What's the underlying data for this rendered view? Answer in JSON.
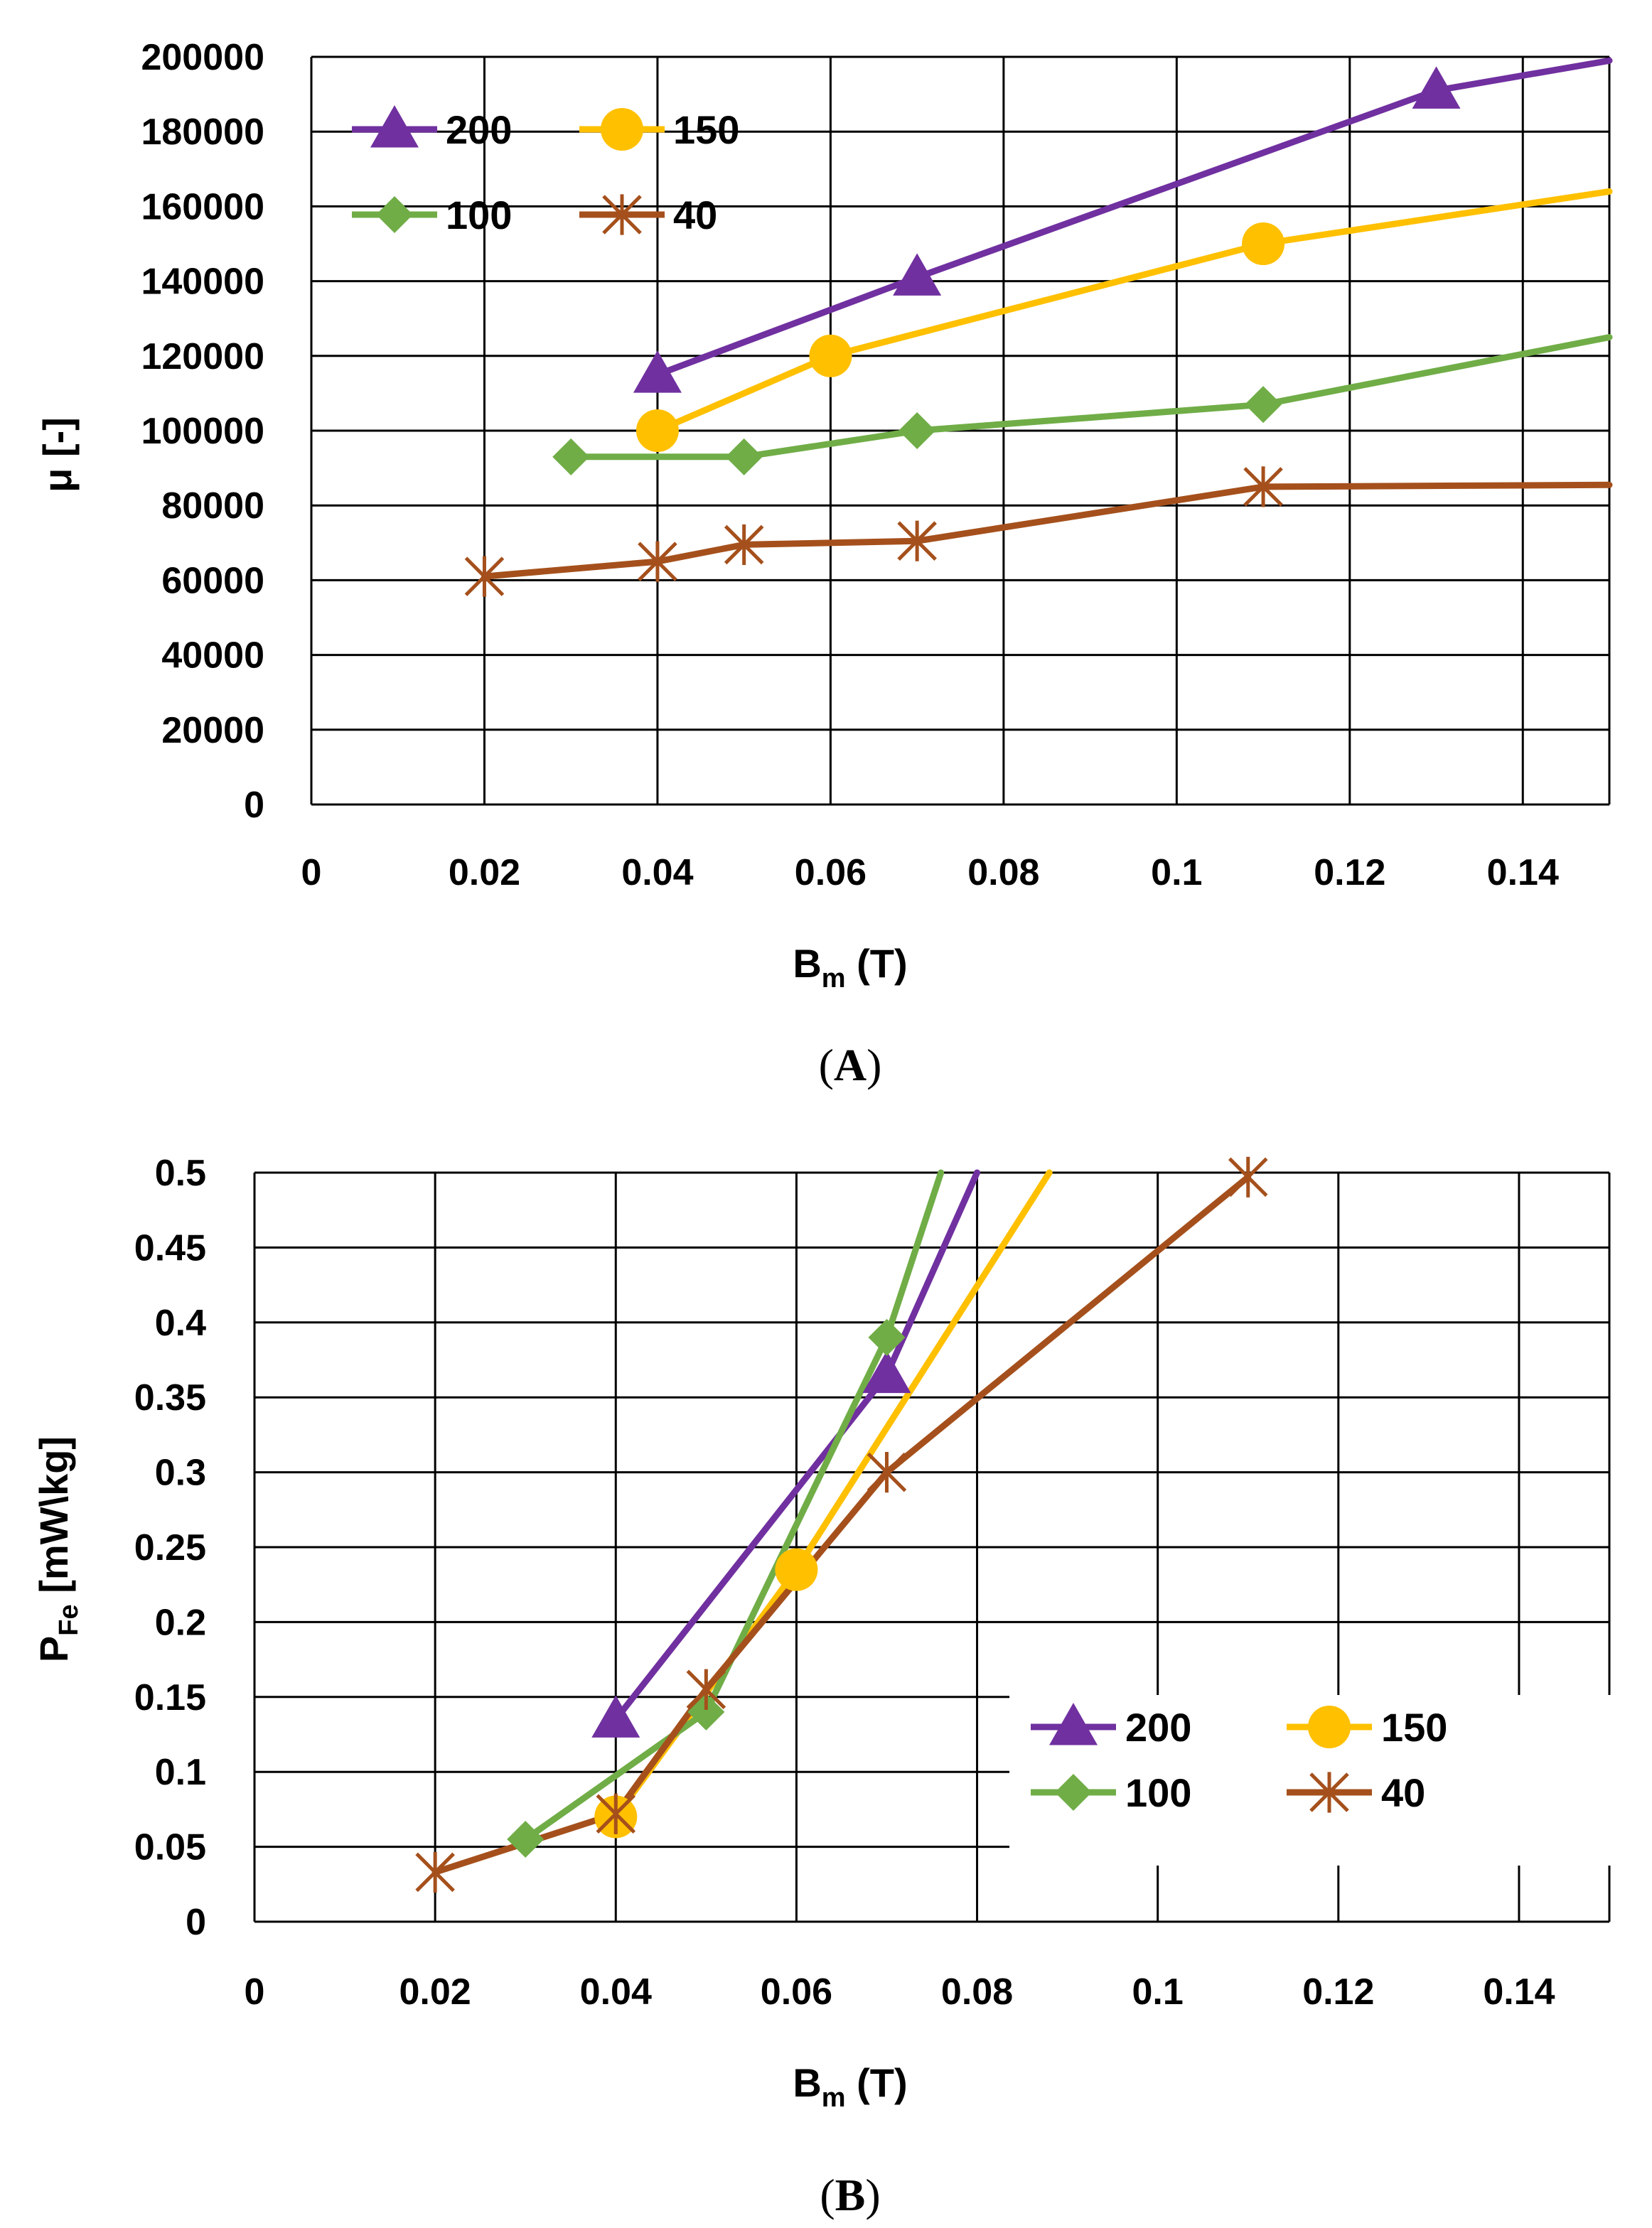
{
  "chart_data": [
    {
      "type": "line",
      "id": "A",
      "caption": {
        "open": "(",
        "letter": "A",
        "close": ")"
      },
      "xlabel": {
        "main": "B",
        "sub": "m",
        "rest": " (T)"
      },
      "ylabel": {
        "main": "μ [-]",
        "sub": "",
        "rest": ""
      },
      "xlim": [
        0,
        0.15
      ],
      "ylim": [
        0,
        200000
      ],
      "xticks": [
        0,
        0.02,
        0.04,
        0.06,
        0.08,
        0.1,
        0.12,
        0.14
      ],
      "xtick_labels": [
        "0",
        "0.02",
        "0.04",
        "0.06",
        "0.08",
        "0.1",
        "0.12",
        "0.14"
      ],
      "yticks": [
        0,
        20000,
        40000,
        60000,
        80000,
        100000,
        120000,
        140000,
        160000,
        180000,
        200000
      ],
      "ytick_labels": [
        "0",
        "20000",
        "40000",
        "60000",
        "80000",
        "100000",
        "120000",
        "140000",
        "160000",
        "180000",
        "200000"
      ],
      "grid": true,
      "legend_position": "top-left",
      "series": [
        {
          "name": "200",
          "color": "#7030A0",
          "marker": "triangle",
          "x": [
            0.04,
            0.07,
            0.13,
            0.15
          ],
          "y": [
            115000,
            141000,
            191000,
            199000
          ],
          "marker_idx": [
            0,
            1,
            2
          ]
        },
        {
          "name": "150",
          "color": "#FFC000",
          "marker": "circle",
          "x": [
            0.04,
            0.06,
            0.11,
            0.15
          ],
          "y": [
            100000,
            120000,
            150000,
            164000
          ],
          "marker_idx": [
            0,
            1,
            2
          ]
        },
        {
          "name": "100",
          "color": "#70AD47",
          "marker": "diamond",
          "x": [
            0.03,
            0.05,
            0.07,
            0.11,
            0.15
          ],
          "y": [
            93000,
            93000,
            100000,
            107000,
            125000
          ],
          "marker_idx": [
            0,
            1,
            2,
            3
          ]
        },
        {
          "name": "40",
          "color": "#A5501C",
          "marker": "star",
          "x": [
            0.02,
            0.04,
            0.05,
            0.07,
            0.11,
            0.15
          ],
          "y": [
            61000,
            65000,
            69500,
            70500,
            85000,
            85500
          ],
          "marker_idx": [
            0,
            1,
            2,
            3,
            4
          ]
        }
      ]
    },
    {
      "type": "line",
      "id": "B",
      "caption": {
        "open": "(",
        "letter": "B",
        "close": ")"
      },
      "xlabel": {
        "main": "B",
        "sub": "m",
        "rest": " (T)"
      },
      "ylabel": {
        "main": "P",
        "sub": "Fe",
        "rest": " [mW\\kg]"
      },
      "xlim": [
        0,
        0.15
      ],
      "ylim": [
        0,
        0.5
      ],
      "xticks": [
        0,
        0.02,
        0.04,
        0.06,
        0.08,
        0.1,
        0.12,
        0.14
      ],
      "xtick_labels": [
        "0",
        "0.02",
        "0.04",
        "0.06",
        "0.08",
        "0.1",
        "0.12",
        "0.14"
      ],
      "yticks": [
        0,
        0.05,
        0.1,
        0.15,
        0.2,
        0.25,
        0.3,
        0.35,
        0.4,
        0.45,
        0.5
      ],
      "ytick_labels": [
        "0",
        "0.05",
        "0.1",
        "0.15",
        "0.2",
        "0.25",
        "0.3",
        "0.35",
        "0.4",
        "0.45",
        "0.5"
      ],
      "grid": true,
      "legend_position": "bottom-right",
      "series": [
        {
          "name": "200",
          "color": "#7030A0",
          "marker": "triangle",
          "x": [
            0.04,
            0.07,
            0.08
          ],
          "y": [
            0.135,
            0.365,
            0.5
          ],
          "marker_idx": [
            0,
            1
          ]
        },
        {
          "name": "150",
          "color": "#FFC000",
          "marker": "circle",
          "x": [
            0.04,
            0.06,
            0.088
          ],
          "y": [
            0.07,
            0.235,
            0.5
          ],
          "marker_idx": [
            0,
            1
          ]
        },
        {
          "name": "100",
          "color": "#70AD47",
          "marker": "diamond",
          "x": [
            0.03,
            0.05,
            0.07,
            0.076
          ],
          "y": [
            0.055,
            0.14,
            0.39,
            0.5
          ],
          "marker_idx": [
            0,
            1,
            2
          ]
        },
        {
          "name": "40",
          "color": "#A5501C",
          "marker": "star",
          "x": [
            0.02,
            0.04,
            0.05,
            0.07,
            0.11
          ],
          "y": [
            0.033,
            0.072,
            0.155,
            0.3,
            0.497
          ],
          "marker_idx": [
            0,
            1,
            2,
            3,
            4
          ]
        }
      ]
    }
  ]
}
